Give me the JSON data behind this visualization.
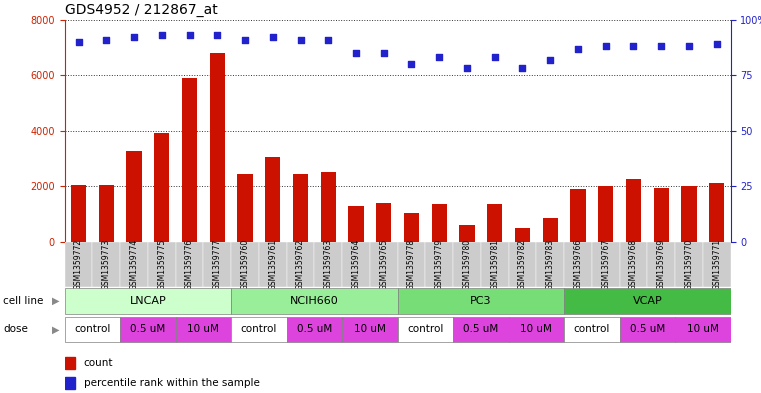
{
  "title": "GDS4952 / 212867_at",
  "samples": [
    "GSM1359772",
    "GSM1359773",
    "GSM1359774",
    "GSM1359775",
    "GSM1359776",
    "GSM1359777",
    "GSM1359760",
    "GSM1359761",
    "GSM1359762",
    "GSM1359763",
    "GSM1359764",
    "GSM1359765",
    "GSM1359778",
    "GSM1359779",
    "GSM1359780",
    "GSM1359781",
    "GSM1359782",
    "GSM1359783",
    "GSM1359766",
    "GSM1359767",
    "GSM1359768",
    "GSM1359769",
    "GSM1359770",
    "GSM1359771"
  ],
  "counts": [
    2050,
    2050,
    3250,
    3900,
    5900,
    6800,
    2450,
    3050,
    2450,
    2500,
    1300,
    1400,
    1050,
    1350,
    600,
    1350,
    500,
    850,
    1900,
    2000,
    2250,
    1950,
    2000,
    2100
  ],
  "percentile_ranks": [
    90,
    91,
    92,
    93,
    93,
    93,
    91,
    92,
    91,
    91,
    85,
    85,
    80,
    83,
    78,
    83,
    78,
    82,
    87,
    88,
    88,
    88,
    88,
    89
  ],
  "cell_lines": [
    {
      "name": "LNCAP",
      "start": 0,
      "end": 6,
      "color": "#ccffcc"
    },
    {
      "name": "NCIH660",
      "start": 6,
      "end": 12,
      "color": "#99ee99"
    },
    {
      "name": "PC3",
      "start": 12,
      "end": 18,
      "color": "#77dd77"
    },
    {
      "name": "VCAP",
      "start": 18,
      "end": 24,
      "color": "#44bb44"
    }
  ],
  "dose_labels": [
    "control",
    "0.5 uM",
    "10 uM",
    "control",
    "0.5 uM",
    "10 uM",
    "control",
    "0.5 uM",
    "10 uM",
    "control",
    "0.5 uM",
    "10 uM"
  ],
  "dose_starts": [
    0,
    2,
    4,
    6,
    8,
    10,
    12,
    14,
    16,
    18,
    20,
    22
  ],
  "dose_ends": [
    2,
    4,
    6,
    8,
    10,
    12,
    14,
    16,
    18,
    20,
    22,
    24
  ],
  "dose_color_control": "#ffffff",
  "dose_color_other": "#dd44dd",
  "bar_color": "#cc1100",
  "dot_color": "#2222cc",
  "ylim_left": [
    0,
    8000
  ],
  "ylim_right": [
    0,
    100
  ],
  "yticks_left": [
    0,
    2000,
    4000,
    6000,
    8000
  ],
  "yticks_right": [
    0,
    25,
    50,
    75,
    100
  ],
  "yticklabels_right": [
    "0",
    "25",
    "50",
    "75",
    "100%"
  ],
  "plot_bg": "#ffffff",
  "xtick_bg": "#cccccc",
  "fig_bg": "#ffffff",
  "left_tick_color": "#cc2200",
  "right_tick_color": "#2222cc",
  "grid_color": "#333333",
  "legend_count_color": "#cc1100",
  "legend_dot_color": "#2222cc",
  "title_fontsize": 10,
  "tick_fontsize": 7,
  "label_fontsize": 7.5,
  "cell_line_fontsize": 8,
  "dose_fontsize": 7.5
}
